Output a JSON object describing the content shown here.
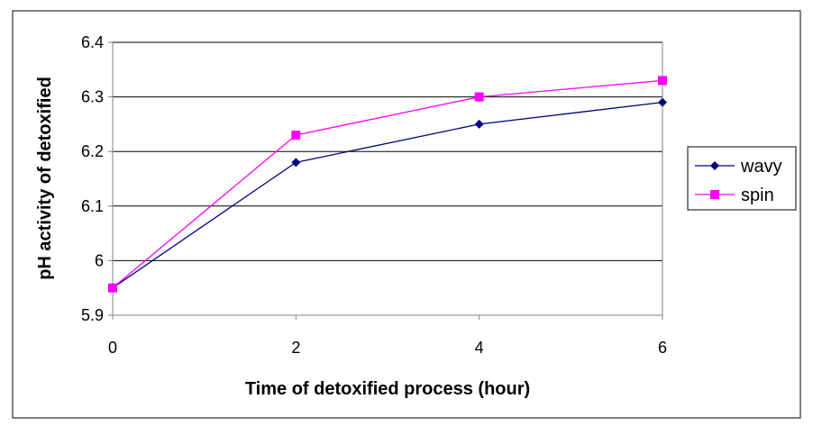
{
  "chart_data": {
    "type": "line",
    "title": "",
    "xlabel": "Time of detoxified process (hour)",
    "ylabel": "pH activity of detoxified",
    "x": [
      0,
      2,
      4,
      6
    ],
    "xticks": [
      "0",
      "2",
      "4",
      "6"
    ],
    "yticks": [
      "5.9",
      "6",
      "6.1",
      "6.2",
      "6.3",
      "6.4"
    ],
    "ylim": [
      5.9,
      6.4
    ],
    "xlim": [
      0,
      6
    ],
    "grid": true,
    "legend_position": "right",
    "series": [
      {
        "name": "wavy",
        "values": [
          5.95,
          6.18,
          6.25,
          6.29
        ],
        "color": "#000080",
        "marker": "diamond"
      },
      {
        "name": "spin",
        "values": [
          5.95,
          6.23,
          6.3,
          6.33
        ],
        "color": "#FF00FF",
        "marker": "square"
      }
    ]
  }
}
